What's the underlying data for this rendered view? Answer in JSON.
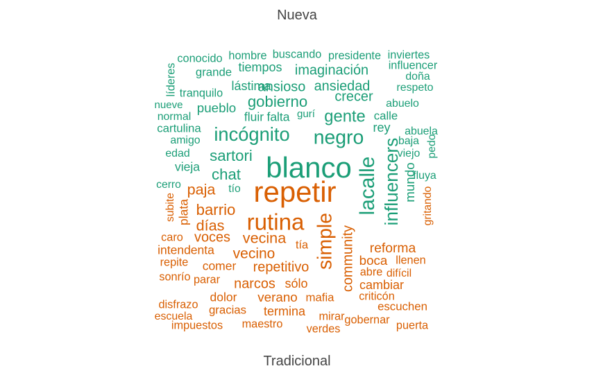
{
  "chart_data": {
    "type": "comparison-wordcloud",
    "groups": [
      {
        "name": "Nueva",
        "color": "#1b9e77",
        "words": [
          {
            "text": "blanco",
            "weight": 1.0
          },
          {
            "text": "lacalle",
            "weight": 0.72
          },
          {
            "text": "negro",
            "weight": 0.68
          },
          {
            "text": "incógnito",
            "weight": 0.65
          },
          {
            "text": "influencers",
            "weight": 0.62
          },
          {
            "text": "gente",
            "weight": 0.55
          },
          {
            "text": "gobierno",
            "weight": 0.5
          },
          {
            "text": "sartori",
            "weight": 0.5
          },
          {
            "text": "chat",
            "weight": 0.5
          },
          {
            "text": "crecer",
            "weight": 0.42
          },
          {
            "text": "imaginación",
            "weight": 0.42
          },
          {
            "text": "ansioso",
            "weight": 0.42
          },
          {
            "text": "ansiedad",
            "weight": 0.42
          },
          {
            "text": "mundo",
            "weight": 0.38
          },
          {
            "text": "pueblo",
            "weight": 0.38
          },
          {
            "text": "tiempos",
            "weight": 0.35
          },
          {
            "text": "lástima",
            "weight": 0.35
          },
          {
            "text": "rey",
            "weight": 0.35
          },
          {
            "text": "fluir",
            "weight": 0.33
          },
          {
            "text": "falta",
            "weight": 0.33
          },
          {
            "text": "vieja",
            "weight": 0.33
          },
          {
            "text": "grande",
            "weight": 0.3
          },
          {
            "text": "cartulina",
            "weight": 0.3
          },
          {
            "text": "calle",
            "weight": 0.3
          },
          {
            "text": "conocido",
            "weight": 0.28
          },
          {
            "text": "hombre",
            "weight": 0.28
          },
          {
            "text": "buscando",
            "weight": 0.28
          },
          {
            "text": "presidente",
            "weight": 0.28
          },
          {
            "text": "inviertes",
            "weight": 0.28
          },
          {
            "text": "influencer",
            "weight": 0.28
          },
          {
            "text": "tranquilo",
            "weight": 0.28
          },
          {
            "text": "líderes",
            "weight": 0.28
          },
          {
            "text": "normal",
            "weight": 0.26
          },
          {
            "text": "abuelo",
            "weight": 0.26
          },
          {
            "text": "abuela",
            "weight": 0.26
          },
          {
            "text": "edad",
            "weight": 0.26
          },
          {
            "text": "amigo",
            "weight": 0.26
          },
          {
            "text": "doña",
            "weight": 0.26
          },
          {
            "text": "respeto",
            "weight": 0.26
          },
          {
            "text": "baja",
            "weight": 0.26
          },
          {
            "text": "viejo",
            "weight": 0.26
          },
          {
            "text": "fluya",
            "weight": 0.26
          },
          {
            "text": "pedo",
            "weight": 0.25
          },
          {
            "text": "cerro",
            "weight": 0.25
          },
          {
            "text": "tío",
            "weight": 0.25
          },
          {
            "text": "nueve",
            "weight": 0.22
          },
          {
            "text": "gurí",
            "weight": 0.22
          }
        ]
      },
      {
        "name": "Tradicional",
        "color": "#d95f02",
        "words": [
          {
            "text": "repetir",
            "weight": 1.0
          },
          {
            "text": "rutina",
            "weight": 0.8
          },
          {
            "text": "simple",
            "weight": 0.68
          },
          {
            "text": "barrio",
            "weight": 0.5
          },
          {
            "text": "días",
            "weight": 0.48
          },
          {
            "text": "paja",
            "weight": 0.48
          },
          {
            "text": "vecina",
            "weight": 0.48
          },
          {
            "text": "vecino",
            "weight": 0.46
          },
          {
            "text": "voces",
            "weight": 0.42
          },
          {
            "text": "reforma",
            "weight": 0.4
          },
          {
            "text": "repetitivo",
            "weight": 0.42
          },
          {
            "text": "narcos",
            "weight": 0.42
          },
          {
            "text": "community",
            "weight": 0.42
          },
          {
            "text": "boca",
            "weight": 0.38
          },
          {
            "text": "verano",
            "weight": 0.38
          },
          {
            "text": "cambiar",
            "weight": 0.35
          },
          {
            "text": "sólo",
            "weight": 0.35
          },
          {
            "text": "termina",
            "weight": 0.35
          },
          {
            "text": "intendenta",
            "weight": 0.33
          },
          {
            "text": "comer",
            "weight": 0.33
          },
          {
            "text": "plata",
            "weight": 0.33
          },
          {
            "text": "dolor",
            "weight": 0.33
          },
          {
            "text": "gracias",
            "weight": 0.3
          },
          {
            "text": "mafia",
            "weight": 0.3
          },
          {
            "text": "escuchen",
            "weight": 0.3
          },
          {
            "text": "caro",
            "weight": 0.28
          },
          {
            "text": "tía",
            "weight": 0.28
          },
          {
            "text": "repite",
            "weight": 0.28
          },
          {
            "text": "llenen",
            "weight": 0.28
          },
          {
            "text": "sonrío",
            "weight": 0.28
          },
          {
            "text": "parar",
            "weight": 0.28
          },
          {
            "text": "abre",
            "weight": 0.28
          },
          {
            "text": "difícil",
            "weight": 0.26
          },
          {
            "text": "criticón",
            "weight": 0.28
          },
          {
            "text": "disfrazo",
            "weight": 0.28
          },
          {
            "text": "escuela",
            "weight": 0.26
          },
          {
            "text": "impuestos",
            "weight": 0.28
          },
          {
            "text": "maestro",
            "weight": 0.28
          },
          {
            "text": "mirar",
            "weight": 0.28
          },
          {
            "text": "gobernar",
            "weight": 0.28
          },
          {
            "text": "puerta",
            "weight": 0.28
          },
          {
            "text": "verdes",
            "weight": 0.28
          },
          {
            "text": "subite",
            "weight": 0.25
          },
          {
            "text": "gritando",
            "weight": 0.25
          }
        ]
      }
    ]
  }
}
